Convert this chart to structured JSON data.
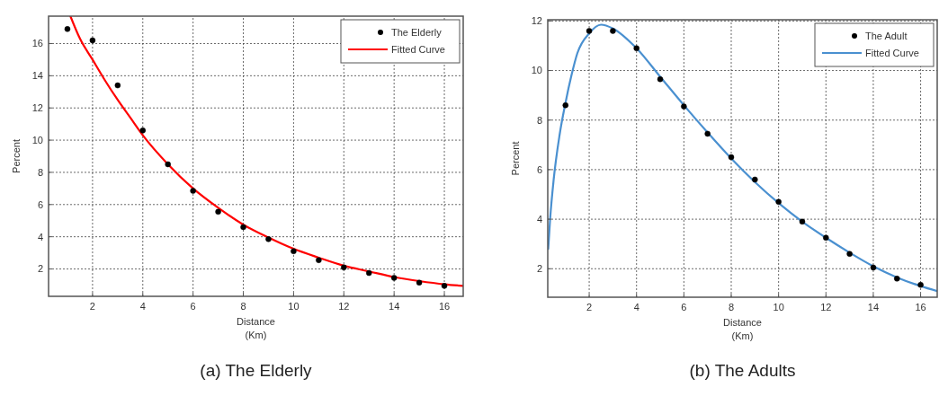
{
  "chart_data": [
    {
      "type": "scatter",
      "title": "(a)  The Elderly",
      "xlabel": "Distance\n(Km)",
      "ylabel": "Percent",
      "xlim": [
        0.25,
        16.75
      ],
      "ylim": [
        0.3,
        17.7
      ],
      "xticks": [
        2,
        4,
        6,
        8,
        10,
        12,
        14,
        16
      ],
      "yticks": [
        2,
        4,
        6,
        8,
        10,
        12,
        14,
        16
      ],
      "grid": true,
      "legend": "top right",
      "x": [
        1,
        2,
        3,
        4,
        5,
        6,
        7,
        8,
        9,
        10,
        11,
        12,
        13,
        14,
        15,
        16
      ],
      "series": [
        {
          "name": "The Elderly",
          "marker": "circle",
          "color": "#000000",
          "values": [
            16.9,
            16.2,
            13.4,
            10.6,
            8.5,
            6.85,
            5.55,
            4.6,
            3.85,
            3.1,
            2.55,
            2.1,
            1.75,
            1.45,
            1.15,
            0.95
          ]
        },
        {
          "name": "Fitted Curve",
          "type": "line",
          "marker": "none",
          "color": "#ff0000",
          "x": [
            1.12,
            1.5,
            2,
            2.5,
            3,
            3.5,
            4,
            5,
            6,
            7,
            8,
            9,
            10,
            11,
            12,
            13,
            14,
            15,
            16,
            16.75
          ],
          "values": [
            17.7,
            16.3,
            15.0,
            13.7,
            12.5,
            11.4,
            10.3,
            8.5,
            7.0,
            5.8,
            4.75,
            3.95,
            3.25,
            2.7,
            2.2,
            1.85,
            1.5,
            1.25,
            1.05,
            0.95
          ]
        }
      ]
    },
    {
      "type": "scatter",
      "title": "(b)  The Adults",
      "xlabel": "Distance\n(Km)",
      "ylabel": "Percent",
      "xlim": [
        0.25,
        16.7
      ],
      "ylim": [
        0.85,
        12.05
      ],
      "xticks": [
        2,
        4,
        6,
        8,
        10,
        12,
        14,
        16
      ],
      "yticks": [
        2,
        4,
        6,
        8,
        10,
        12
      ],
      "grid": true,
      "legend": "top right",
      "x": [
        1,
        2,
        3,
        4,
        5,
        6,
        7,
        8,
        9,
        10,
        11,
        12,
        13,
        14,
        15,
        16
      ],
      "series": [
        {
          "name": "The Adult",
          "marker": "circle",
          "color": "#000000",
          "values": [
            8.6,
            11.6,
            11.6,
            10.9,
            9.65,
            8.55,
            7.45,
            6.5,
            5.6,
            4.7,
            3.9,
            3.25,
            2.6,
            2.05,
            1.6,
            1.35
          ]
        },
        {
          "name": "Fitted Curve",
          "type": "line",
          "marker": "none",
          "color": "#4a90d0",
          "x": [
            0.27,
            0.35,
            0.5,
            0.75,
            1,
            1.25,
            1.5,
            2,
            2.5,
            3,
            4,
            5,
            6,
            7,
            8,
            9,
            10,
            11,
            12,
            13,
            14,
            15,
            16,
            16.7
          ],
          "values": [
            2.8,
            4.0,
            5.6,
            7.4,
            8.7,
            9.8,
            10.7,
            11.5,
            11.85,
            11.7,
            10.9,
            9.75,
            8.6,
            7.5,
            6.45,
            5.5,
            4.65,
            3.9,
            3.25,
            2.65,
            2.1,
            1.65,
            1.3,
            1.1
          ]
        }
      ]
    }
  ]
}
